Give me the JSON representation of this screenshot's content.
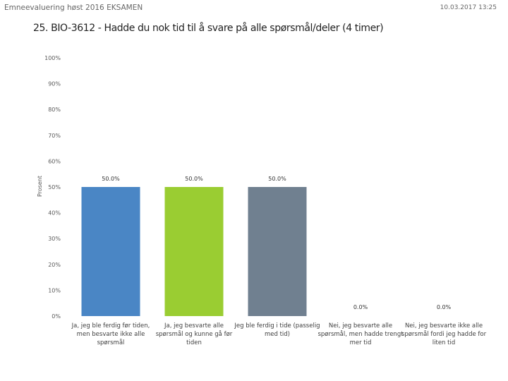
{
  "header": {
    "survey_title": "Emneevaluering høst 2016 EKSAMEN",
    "timestamp": "10.03.2017 13:25"
  },
  "chart_data": {
    "type": "bar",
    "title": "25. BIO-3612 - Hadde du nok tid til å svare på alle spørsmål/deler (4 timer)",
    "xlabel": "",
    "ylabel": "Prosent",
    "ylim": [
      0,
      100
    ],
    "yticks": [
      0,
      10,
      20,
      30,
      40,
      50,
      60,
      70,
      80,
      90,
      100
    ],
    "ytick_labels": [
      "0%",
      "10%",
      "20%",
      "30%",
      "40%",
      "50%",
      "60%",
      "70%",
      "80%",
      "90%",
      "100%"
    ],
    "grid": false,
    "categories": [
      "Ja, jeg ble ferdig før tiden, men besvarte ikke alle spørsmål",
      "Ja, jeg besvarte alle spørsmål og kunne gå før tiden",
      "Jeg ble ferdig i tide (passelig med tid)",
      "Nei, jeg besvarte alle spørsmål, men hadde trengt mer tid",
      "Nei, jeg besvarte ikke alle spørsmål fordi jeg hadde for liten tid"
    ],
    "category_lines": [
      [
        "Ja, jeg ble ferdig før tiden,",
        "men besvarte ikke alle",
        "spørsmål"
      ],
      [
        "Ja, jeg besvarte alle",
        "spørsmål og kunne gå før",
        "tiden"
      ],
      [
        "Jeg ble ferdig i tide (passelig",
        "med tid)"
      ],
      [
        "Nei, jeg besvarte alle",
        "spørsmål, men hadde trengt",
        "mer tid"
      ],
      [
        "Nei, jeg besvarte ikke alle",
        "spørsmål fordi jeg hadde for",
        "liten tid"
      ]
    ],
    "values": [
      50.0,
      50.0,
      50.0,
      0.0,
      0.0
    ],
    "value_labels": [
      "50.0%",
      "50.0%",
      "50.0%",
      "0.0%",
      "0.0%"
    ],
    "colors": [
      "#4a86c5",
      "#9acd32",
      "#708090",
      "#c0504d",
      "#8064a2"
    ]
  }
}
